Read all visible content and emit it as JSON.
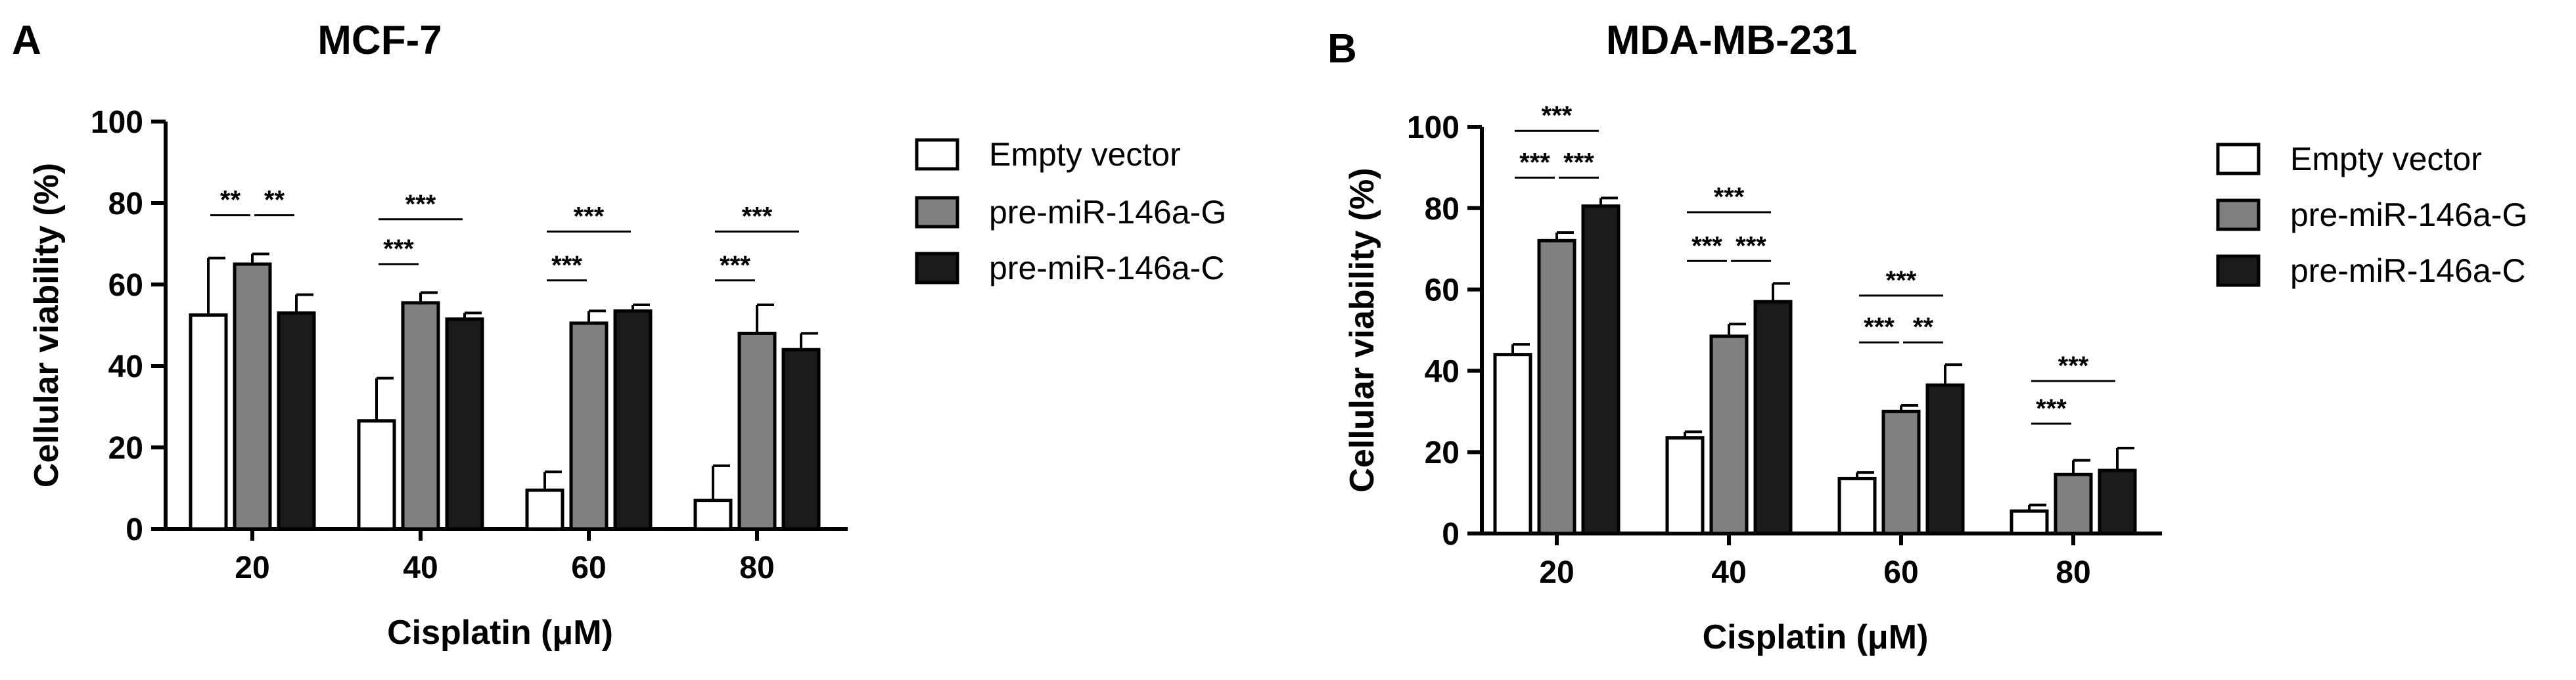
{
  "chart_data": [
    {
      "type": "bar",
      "panel": "A",
      "title": "MCF-7",
      "xlabel": "Cisplatin (μM)",
      "ylabel": "Cellular viability (%)",
      "ylim": [
        0,
        100
      ],
      "yticks": [
        "0",
        "20",
        "40",
        "60",
        "80",
        "100"
      ],
      "categories": [
        "20",
        "40",
        "60",
        "80"
      ],
      "series": [
        {
          "name": "Empty vector",
          "color": "#ffffff",
          "values": [
            52.5,
            26.5,
            9.5,
            7
          ],
          "errors": [
            14,
            10.5,
            4.5,
            8.5
          ]
        },
        {
          "name": "pre-miR-146a-G",
          "color": "#808080",
          "values": [
            65,
            55.5,
            50.5,
            48
          ],
          "errors": [
            2.5,
            2.5,
            3,
            7
          ]
        },
        {
          "name": "pre-miR-146a-C",
          "color": "#1a1a1a",
          "values": [
            53,
            51.5,
            53.5,
            44
          ],
          "errors": [
            4.5,
            1.5,
            1.5,
            4
          ]
        }
      ],
      "significance": [
        {
          "category": 0,
          "from": 0,
          "to": 1,
          "label": "**",
          "y": 77
        },
        {
          "category": 0,
          "from": 1,
          "to": 2,
          "label": "**",
          "y": 77
        },
        {
          "category": 1,
          "from": 0,
          "to": 1,
          "label": "***",
          "y": 65
        },
        {
          "category": 1,
          "from": 0,
          "to": 2,
          "label": "***",
          "y": 76
        },
        {
          "category": 2,
          "from": 0,
          "to": 1,
          "label": "***",
          "y": 61
        },
        {
          "category": 2,
          "from": 0,
          "to": 2,
          "label": "***",
          "y": 73
        },
        {
          "category": 3,
          "from": 0,
          "to": 1,
          "label": "***",
          "y": 61
        },
        {
          "category": 3,
          "from": 0,
          "to": 2,
          "label": "***",
          "y": 73
        }
      ],
      "legend_position": "right"
    },
    {
      "type": "bar",
      "panel": "B",
      "title": "MDA-MB-231",
      "xlabel": "Cisplatin (μM)",
      "ylabel": "Cellular viability (%)",
      "ylim": [
        0,
        100
      ],
      "yticks": [
        "0",
        "20",
        "40",
        "60",
        "80",
        "100"
      ],
      "categories": [
        "20",
        "40",
        "60",
        "80"
      ],
      "series": [
        {
          "name": "Empty vector",
          "color": "#ffffff",
          "values": [
            44,
            23.5,
            13.5,
            5.5
          ],
          "errors": [
            2.5,
            1.5,
            1.5,
            1.5
          ]
        },
        {
          "name": "pre-miR-146a-G",
          "color": "#808080",
          "values": [
            72,
            48.5,
            30,
            14.5
          ],
          "errors": [
            2,
            3,
            1.5,
            3.5
          ]
        },
        {
          "name": "pre-miR-146a-C",
          "color": "#1a1a1a",
          "values": [
            80.5,
            57,
            36.5,
            15.5
          ],
          "errors": [
            2,
            4.5,
            5,
            5.5
          ]
        }
      ],
      "significance": [
        {
          "category": 0,
          "from": 0,
          "to": 1,
          "label": "***",
          "y": 87.5
        },
        {
          "category": 0,
          "from": 1,
          "to": 2,
          "label": "***",
          "y": 87.5
        },
        {
          "category": 0,
          "from": 0,
          "to": 2,
          "label": "***",
          "y": 99
        },
        {
          "category": 1,
          "from": 0,
          "to": 1,
          "label": "***",
          "y": 67
        },
        {
          "category": 1,
          "from": 1,
          "to": 2,
          "label": "***",
          "y": 67
        },
        {
          "category": 1,
          "from": 0,
          "to": 2,
          "label": "***",
          "y": 79
        },
        {
          "category": 2,
          "from": 0,
          "to": 1,
          "label": "***",
          "y": 47
        },
        {
          "category": 2,
          "from": 1,
          "to": 2,
          "label": "**",
          "y": 47
        },
        {
          "category": 2,
          "from": 0,
          "to": 2,
          "label": "***",
          "y": 58.5
        },
        {
          "category": 3,
          "from": 0,
          "to": 1,
          "label": "***",
          "y": 27
        },
        {
          "category": 3,
          "from": 0,
          "to": 2,
          "label": "***",
          "y": 37.5
        }
      ],
      "legend_position": "right"
    }
  ]
}
